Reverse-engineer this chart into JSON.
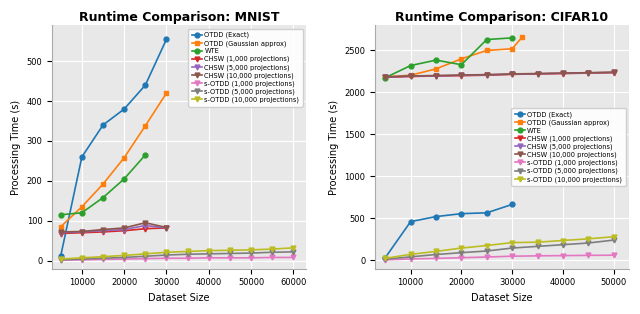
{
  "mnist": {
    "title": "Runtime Comparison: MNIST",
    "xlabel": "Dataset Size",
    "ylabel": "Processing Time (s)",
    "series": [
      {
        "label": "OTDD (Exact)",
        "color": "#1f77b4",
        "marker": "o",
        "x": [
          5000,
          10000,
          15000,
          20000,
          25000,
          30000
        ],
        "y": [
          12,
          260,
          340,
          380,
          440,
          555
        ]
      },
      {
        "label": "OTDD (Gaussian approx)",
        "color": "#ff7f0e",
        "marker": "s",
        "x": [
          5000,
          10000,
          15000,
          20000,
          25000,
          30000
        ],
        "y": [
          85,
          135,
          192,
          258,
          338,
          420
        ]
      },
      {
        "label": "WTE",
        "color": "#2ca02c",
        "marker": "o",
        "x": [
          5000,
          10000,
          15000,
          20000,
          25000
        ],
        "y": [
          115,
          120,
          158,
          205,
          265
        ]
      },
      {
        "label": "CHSW (1,000 projections)",
        "color": "#d62728",
        "marker": "v",
        "x": [
          5000,
          10000,
          15000,
          20000,
          25000,
          30000
        ],
        "y": [
          68,
          70,
          72,
          75,
          80,
          82
        ]
      },
      {
        "label": "CHSW (5,000 projections)",
        "color": "#9467bd",
        "marker": "v",
        "x": [
          5000,
          10000,
          15000,
          20000,
          25000,
          30000
        ],
        "y": [
          70,
          72,
          75,
          78,
          88,
          82
        ]
      },
      {
        "label": "CHSW (10,000 projections)",
        "color": "#8c564b",
        "marker": "v",
        "x": [
          5000,
          10000,
          15000,
          20000,
          25000,
          30000
        ],
        "y": [
          72,
          73,
          78,
          82,
          95,
          83
        ]
      },
      {
        "label": "s-OTDD (1,000 projections)",
        "color": "#e377c2",
        "marker": "v",
        "x": [
          5000,
          10000,
          15000,
          20000,
          25000,
          30000,
          35000,
          40000,
          45000,
          50000,
          55000,
          60000
        ],
        "y": [
          1,
          2,
          3,
          4,
          5,
          6,
          6,
          7,
          7,
          7,
          8,
          8
        ]
      },
      {
        "label": "s-OTDD (5,000 projections)",
        "color": "#7f7f7f",
        "marker": "v",
        "x": [
          5000,
          10000,
          15000,
          20000,
          25000,
          30000,
          35000,
          40000,
          45000,
          50000,
          55000,
          60000
        ],
        "y": [
          2,
          4,
          6,
          8,
          11,
          14,
          16,
          17,
          18,
          19,
          21,
          22
        ]
      },
      {
        "label": "s-OTDD (10,000 projections)",
        "color": "#bcbd22",
        "marker": "v",
        "x": [
          5000,
          10000,
          15000,
          20000,
          25000,
          30000,
          35000,
          40000,
          45000,
          50000,
          55000,
          60000
        ],
        "y": [
          4,
          7,
          10,
          13,
          17,
          21,
          23,
          25,
          26,
          27,
          29,
          32
        ]
      }
    ],
    "xticks": [
      10000,
      20000,
      30000,
      40000,
      50000,
      60000
    ],
    "yticks": [
      0,
      100,
      200,
      300,
      400,
      500
    ],
    "ylim": [
      -20,
      590
    ],
    "xlim": [
      3000,
      63000
    ],
    "legend_loc": "upper right"
  },
  "cifar10": {
    "title": "Runtime Comparison: CIFAR10",
    "xlabel": "Dataset Size",
    "ylabel": "Processing Time (s)",
    "series": [
      {
        "label": "OTDD (Exact)",
        "color": "#1f77b4",
        "marker": "o",
        "x": [
          5000,
          10000,
          15000,
          20000,
          25000,
          30000
        ],
        "y": [
          30,
          460,
          520,
          555,
          565,
          665
        ]
      },
      {
        "label": "OTDD (Gaussian approx)",
        "color": "#ff7f0e",
        "marker": "s",
        "x": [
          5000,
          10000,
          15000,
          20000,
          25000,
          30000,
          32000
        ],
        "y": [
          2185,
          2205,
          2280,
          2400,
          2500,
          2520,
          2660
        ]
      },
      {
        "label": "WTE",
        "color": "#2ca02c",
        "marker": "o",
        "x": [
          5000,
          10000,
          15000,
          20000,
          25000,
          30000
        ],
        "y": [
          2175,
          2320,
          2385,
          2330,
          2630,
          2650
        ]
      },
      {
        "label": "CHSW (1,000 projections)",
        "color": "#d62728",
        "marker": "v",
        "x": [
          5000,
          10000,
          15000,
          20000,
          25000,
          30000,
          35000,
          40000,
          45000,
          50000
        ],
        "y": [
          2180,
          2190,
          2195,
          2200,
          2205,
          2215,
          2220,
          2225,
          2230,
          2235
        ]
      },
      {
        "label": "CHSW (5,000 projections)",
        "color": "#9467bd",
        "marker": "v",
        "x": [
          5000,
          10000,
          15000,
          20000,
          25000,
          30000,
          35000,
          40000,
          45000,
          50000
        ],
        "y": [
          2183,
          2193,
          2198,
          2203,
          2208,
          2218,
          2222,
          2228,
          2232,
          2238
        ]
      },
      {
        "label": "CHSW (10,000 projections)",
        "color": "#8c564b",
        "marker": "v",
        "x": [
          5000,
          10000,
          15000,
          20000,
          25000,
          30000,
          35000,
          40000,
          45000,
          50000
        ],
        "y": [
          2185,
          2196,
          2201,
          2207,
          2212,
          2220,
          2225,
          2230,
          2235,
          2242
        ]
      },
      {
        "label": "s-OTDD (1,000 projections)",
        "color": "#e377c2",
        "marker": "v",
        "x": [
          5000,
          10000,
          15000,
          20000,
          25000,
          30000,
          35000,
          40000,
          45000,
          50000
        ],
        "y": [
          5,
          15,
          22,
          30,
          38,
          48,
          52,
          55,
          58,
          60
        ]
      },
      {
        "label": "s-OTDD (5,000 projections)",
        "color": "#7f7f7f",
        "marker": "v",
        "x": [
          5000,
          10000,
          15000,
          20000,
          25000,
          30000,
          35000,
          40000,
          45000,
          50000
        ],
        "y": [
          12,
          40,
          68,
          90,
          110,
          145,
          165,
          185,
          205,
          240
        ]
      },
      {
        "label": "s-OTDD (10,000 projections)",
        "color": "#bcbd22",
        "marker": "v",
        "x": [
          5000,
          10000,
          15000,
          20000,
          25000,
          30000,
          35000,
          40000,
          45000,
          50000
        ],
        "y": [
          22,
          70,
          105,
          145,
          175,
          210,
          215,
          235,
          255,
          280
        ]
      }
    ],
    "xticks": [
      10000,
      20000,
      30000,
      40000,
      50000
    ],
    "yticks": [
      0,
      500,
      1000,
      1500,
      2000,
      2500
    ],
    "ylim": [
      -100,
      2800
    ],
    "xlim": [
      3000,
      53000
    ],
    "legend_loc": "center right"
  },
  "figsize": [
    6.4,
    3.14
  ],
  "dpi": 100,
  "background_color": "#e8e8e8",
  "grid_color": "white",
  "title_fontsize": 9,
  "label_fontsize": 7,
  "tick_fontsize": 6,
  "legend_fontsize": 4.8,
  "linewidth": 1.2,
  "markersize": 3.5
}
